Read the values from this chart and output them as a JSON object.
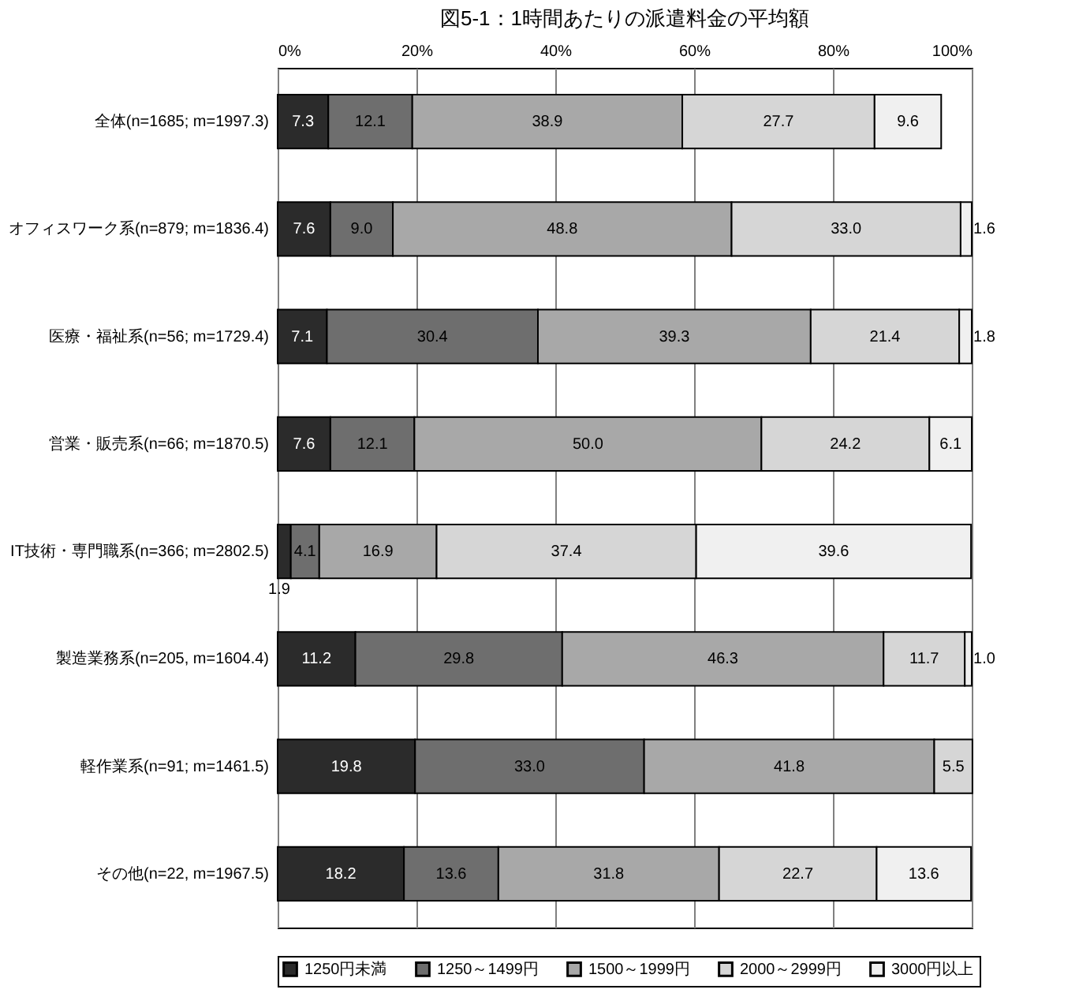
{
  "chart_data": {
    "type": "bar",
    "orientation": "horizontal",
    "stacked": true,
    "title": "図5-1：1時間あたりの派遣料金の平均額",
    "categories": [
      "全体(n=1685; m=1997.3)",
      "オフィスワーク系(n=879; m=1836.4)",
      "医療・福祉系(n=56; m=1729.4)",
      "営業・販売系(n=66; m=1870.5)",
      "IT技術・専門職系(n=366; m=2802.5)",
      "製造業務系(n=205, m=1604.4)",
      "軽作業系(n=91; m=1461.5)",
      "その他(n=22, m=1967.5)"
    ],
    "series": [
      {
        "name": "1250円未満",
        "color": "#2b2b2b",
        "values": [
          7.3,
          7.6,
          7.1,
          7.6,
          1.9,
          11.2,
          19.8,
          18.2
        ],
        "value_labels": [
          "7.3",
          "7.6",
          "7.1",
          "7.6",
          "1.9",
          "11.2",
          "19.8",
          "18.2"
        ]
      },
      {
        "name": "1250～1499円",
        "color": "#6e6e6e",
        "values": [
          12.1,
          9.0,
          30.4,
          12.1,
          4.1,
          29.8,
          33.0,
          13.6
        ],
        "value_labels": [
          "12.1",
          "9.0",
          "30.4",
          "12.1",
          "4.1",
          "29.8",
          "33.0",
          "13.6"
        ]
      },
      {
        "name": "1500～1999円",
        "color": "#a8a8a8",
        "values": [
          38.9,
          48.8,
          39.3,
          50.0,
          16.9,
          46.3,
          41.8,
          31.8
        ],
        "value_labels": [
          "38.9",
          "48.8",
          "39.3",
          "50.0",
          "16.9",
          "46.3",
          "41.8",
          "31.8"
        ]
      },
      {
        "name": "2000～2999円",
        "color": "#d6d6d6",
        "values": [
          27.7,
          33.0,
          21.4,
          24.2,
          37.4,
          11.7,
          5.5,
          22.7
        ],
        "value_labels": [
          "27.7",
          "33.0",
          "21.4",
          "24.2",
          "37.4",
          "11.7",
          "5.5",
          "22.7"
        ]
      },
      {
        "name": "3000円以上",
        "color": "#f0f0f0",
        "values": [
          9.6,
          1.6,
          1.8,
          6.1,
          39.6,
          1.0,
          null,
          13.6
        ],
        "value_labels": [
          "9.6",
          "1.6",
          "1.8",
          "6.1",
          "39.6",
          "1.0",
          null,
          "13.6"
        ]
      }
    ],
    "xlim": [
      0,
      100
    ],
    "xticks": [
      {
        "value": 0,
        "label": "0%"
      },
      {
        "value": 20,
        "label": "20%"
      },
      {
        "value": 40,
        "label": "40%"
      },
      {
        "value": 60,
        "label": "60%"
      },
      {
        "value": 80,
        "label": "80%"
      },
      {
        "value": 100,
        "label": "100%"
      }
    ],
    "grid": "x",
    "legend": "bottom"
  }
}
